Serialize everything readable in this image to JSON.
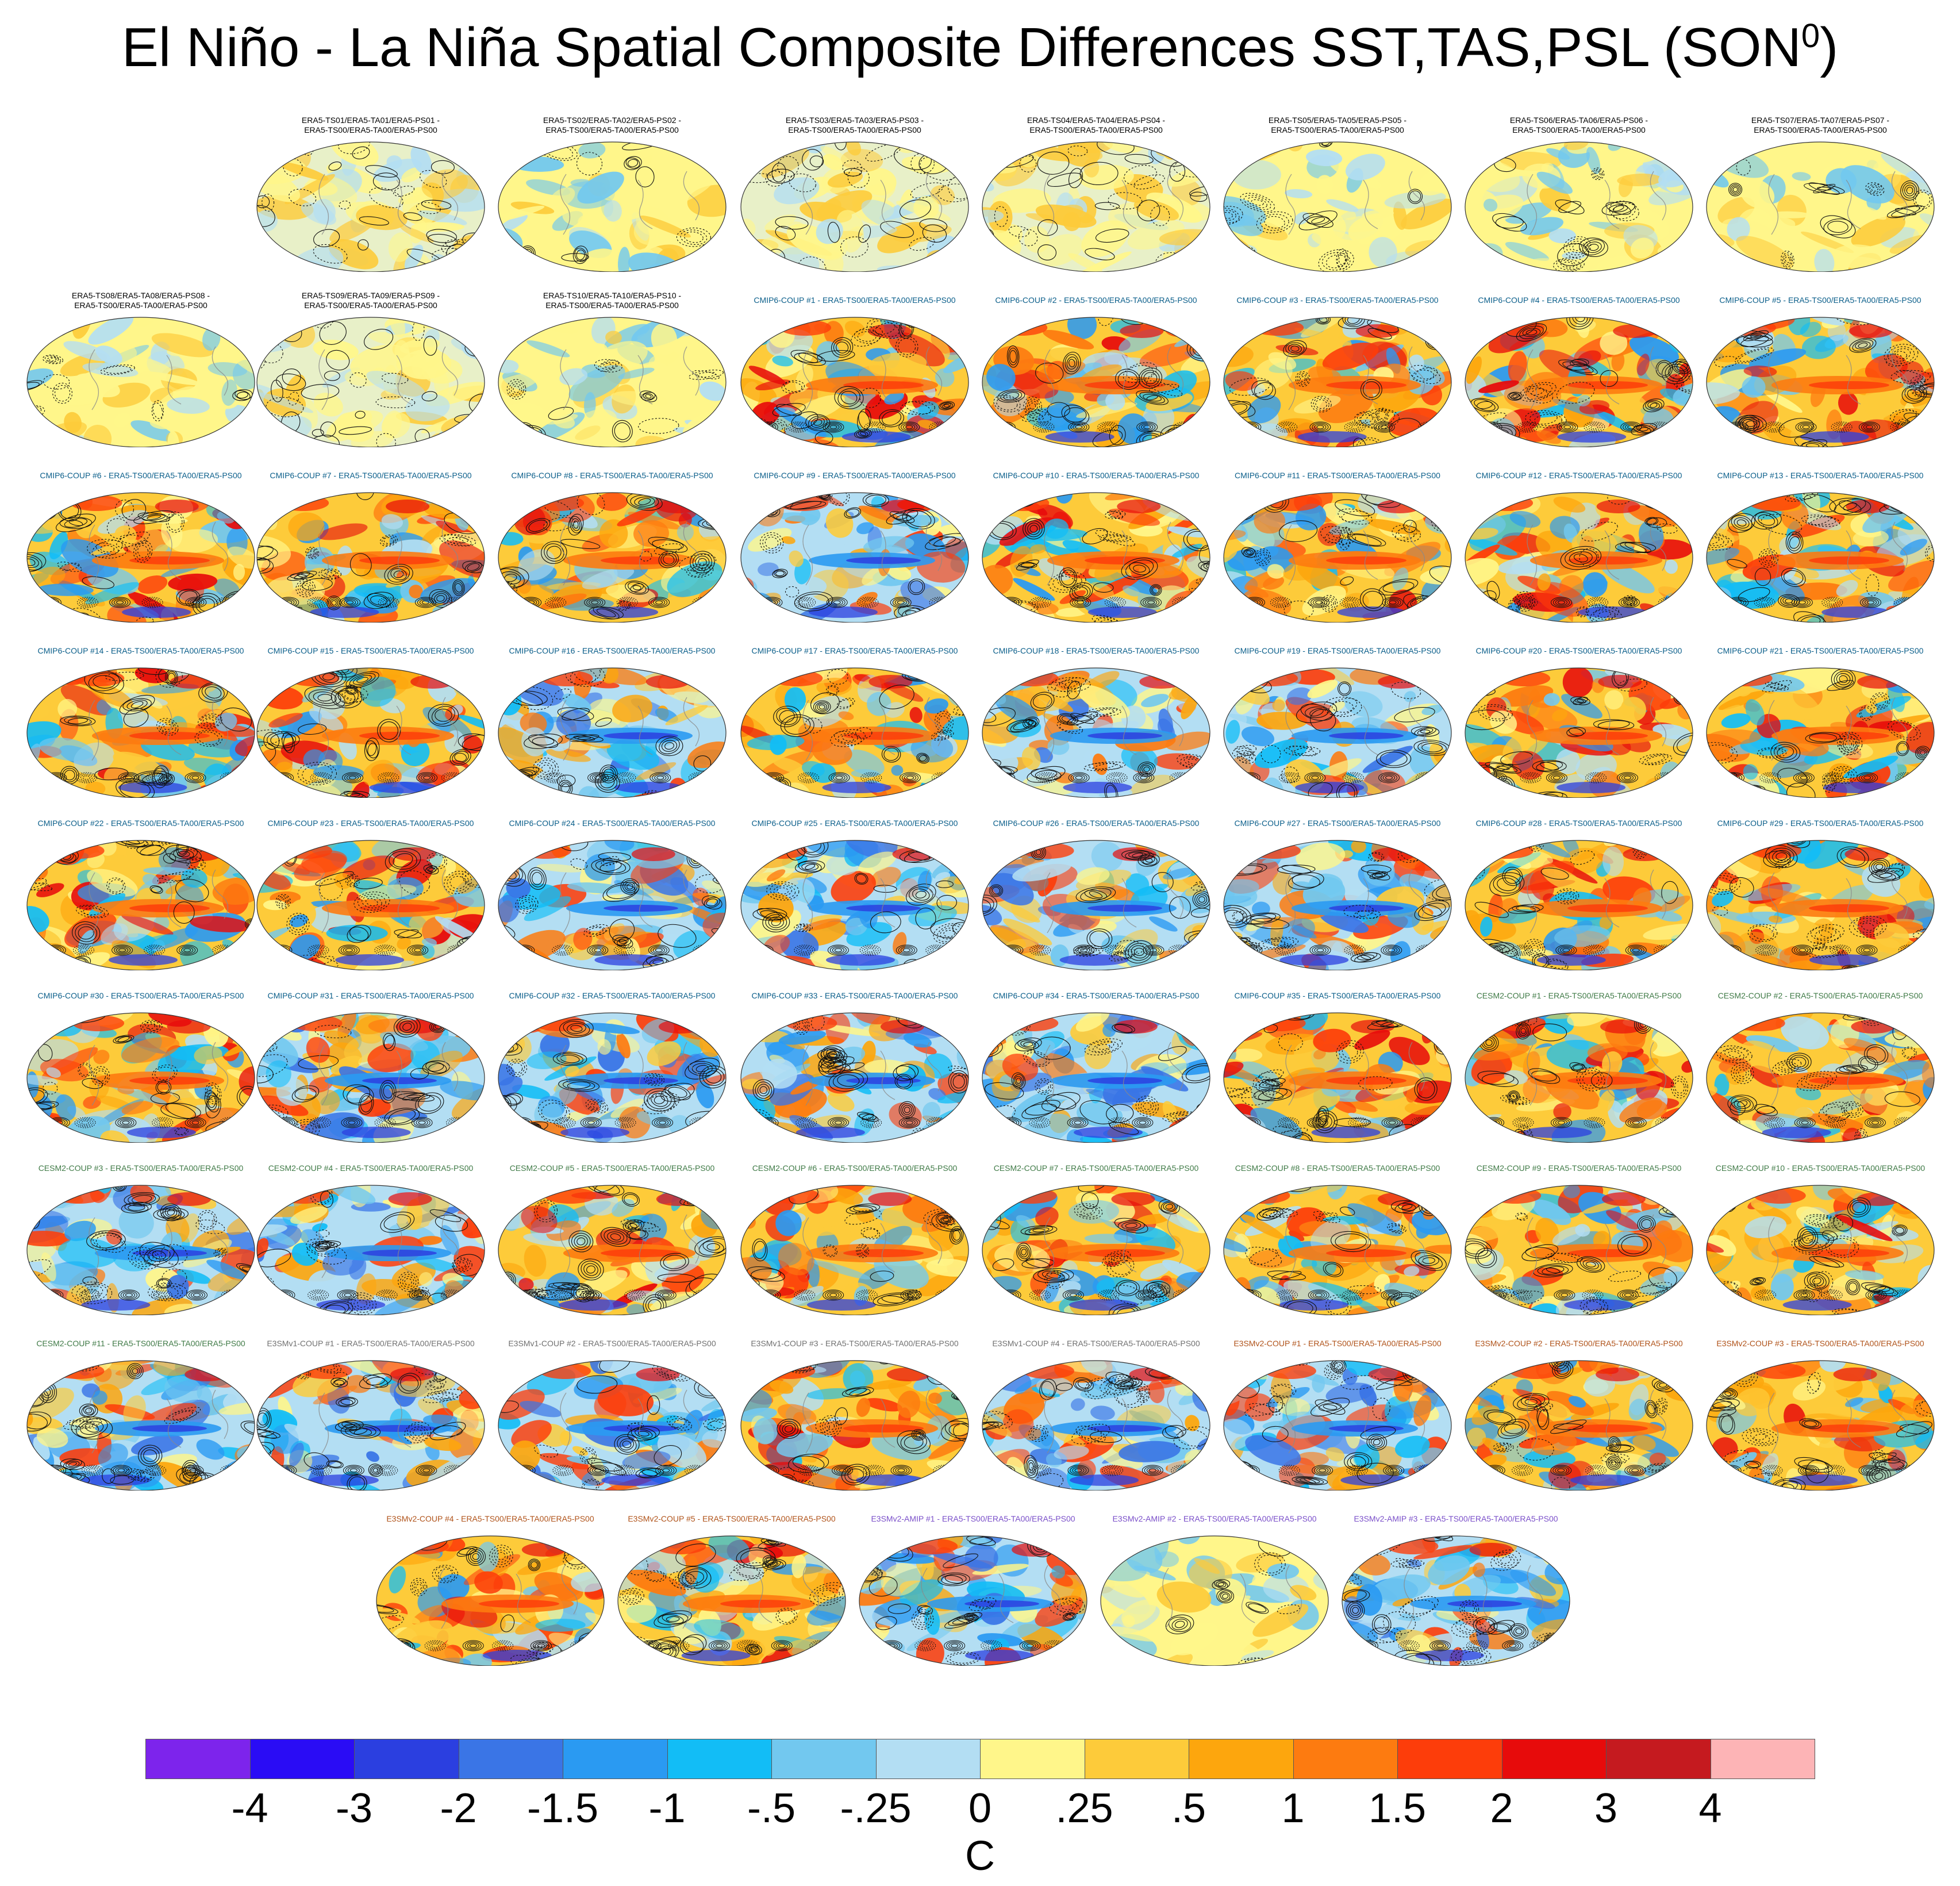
{
  "chart_data": {
    "type": "heatmap",
    "title": "El Niño - La Niña Spatial Composite Differences SST,TAS,PSL (SON",
    "title_superscript": "0",
    "title_suffix": ")",
    "projection": "Robinson (global)",
    "shading_variable": "SST/TAS composite difference",
    "contour_variable": "PSL composite difference (solid positive, dashed negative)",
    "colorbar": {
      "units": "C",
      "levels": [
        "-4",
        "-3",
        "-2",
        "-1.5",
        "-1",
        "-.5",
        "-.25",
        "0",
        ".25",
        ".5",
        "1",
        "1.5",
        "2",
        "3",
        "4"
      ],
      "colors": [
        "#7d24ec",
        "#2a0cf5",
        "#2b3fe0",
        "#3a75e6",
        "#2a9af2",
        "#12bdf6",
        "#72c8ef",
        "#b3def3",
        "#fff68a",
        "#fdcb3a",
        "#fda60d",
        "#fd7b10",
        "#fd3d0a",
        "#e70b0b",
        "#c51a1f",
        "#fdb4b6"
      ]
    },
    "panels": [
      {
        "label": "ERA5-TS01/ERA5-TA01/ERA5-PS01 - ERA5-TS00/ERA5-TA00/ERA5-PS00",
        "group": "obs",
        "pattern": "noise"
      },
      {
        "label": "ERA5-TS02/ERA5-TA02/ERA5-PS02 - ERA5-TS00/ERA5-TA00/ERA5-PS00",
        "group": "obs",
        "pattern": "weak"
      },
      {
        "label": "ERA5-TS03/ERA5-TA03/ERA5-PS03 - ERA5-TS00/ERA5-TA00/ERA5-PS00",
        "group": "obs",
        "pattern": "noise"
      },
      {
        "label": "ERA5-TS04/ERA5-TA04/ERA5-PS04 - ERA5-TS00/ERA5-TA00/ERA5-PS00",
        "group": "obs",
        "pattern": "noise"
      },
      {
        "label": "ERA5-TS05/ERA5-TA05/ERA5-PS05 - ERA5-TS00/ERA5-TA00/ERA5-PS00",
        "group": "obs",
        "pattern": "weak"
      },
      {
        "label": "ERA5-TS06/ERA5-TA06/ERA5-PS06 - ERA5-TS00/ERA5-TA00/ERA5-PS00",
        "group": "obs",
        "pattern": "weak"
      },
      {
        "label": "ERA5-TS07/ERA5-TA07/ERA5-PS07 - ERA5-TS00/ERA5-TA00/ERA5-PS00",
        "group": "obs",
        "pattern": "weak"
      },
      {
        "label": "ERA5-TS08/ERA5-TA08/ERA5-PS08 - ERA5-TS00/ERA5-TA00/ERA5-PS00",
        "group": "obs",
        "pattern": "weak"
      },
      {
        "label": "ERA5-TS09/ERA5-TA09/ERA5-PS09 - ERA5-TS00/ERA5-TA00/ERA5-PS00",
        "group": "obs",
        "pattern": "noise"
      },
      {
        "label": "ERA5-TS10/ERA5-TA10/ERA5-PS10 - ERA5-TS00/ERA5-TA00/ERA5-PS00",
        "group": "obs",
        "pattern": "weak"
      },
      {
        "label": "CMIP6-COUP  #1 - ERA5-TS00/ERA5-TA00/ERA5-PS00",
        "group": "cmip6",
        "pattern": "enso"
      },
      {
        "label": "CMIP6-COUP  #2 - ERA5-TS00/ERA5-TA00/ERA5-PS00",
        "group": "cmip6",
        "pattern": "enso"
      },
      {
        "label": "CMIP6-COUP  #3 - ERA5-TS00/ERA5-TA00/ERA5-PS00",
        "group": "cmip6",
        "pattern": "enso"
      },
      {
        "label": "CMIP6-COUP  #4 - ERA5-TS00/ERA5-TA00/ERA5-PS00",
        "group": "cmip6",
        "pattern": "enso"
      },
      {
        "label": "CMIP6-COUP  #5 - ERA5-TS00/ERA5-TA00/ERA5-PS00",
        "group": "cmip6",
        "pattern": "enso"
      },
      {
        "label": "CMIP6-COUP  #6 - ERA5-TS00/ERA5-TA00/ERA5-PS00",
        "group": "cmip6",
        "pattern": "enso"
      },
      {
        "label": "CMIP6-COUP  #7 - ERA5-TS00/ERA5-TA00/ERA5-PS00",
        "group": "cmip6",
        "pattern": "enso"
      },
      {
        "label": "CMIP6-COUP  #8 - ERA5-TS00/ERA5-TA00/ERA5-PS00",
        "group": "cmip6",
        "pattern": "enso"
      },
      {
        "label": "CMIP6-COUP  #9 - ERA5-TS00/ERA5-TA00/ERA5-PS00",
        "group": "cmip6",
        "pattern": "lanina"
      },
      {
        "label": "CMIP6-COUP  #10 - ERA5-TS00/ERA5-TA00/ERA5-PS00",
        "group": "cmip6",
        "pattern": "enso"
      },
      {
        "label": "CMIP6-COUP  #11 - ERA5-TS00/ERA5-TA00/ERA5-PS00",
        "group": "cmip6",
        "pattern": "enso"
      },
      {
        "label": "CMIP6-COUP  #12 - ERA5-TS00/ERA5-TA00/ERA5-PS00",
        "group": "cmip6",
        "pattern": "enso"
      },
      {
        "label": "CMIP6-COUP  #13 - ERA5-TS00/ERA5-TA00/ERA5-PS00",
        "group": "cmip6",
        "pattern": "enso"
      },
      {
        "label": "CMIP6-COUP  #14 - ERA5-TS00/ERA5-TA00/ERA5-PS00",
        "group": "cmip6",
        "pattern": "enso"
      },
      {
        "label": "CMIP6-COUP  #15 - ERA5-TS00/ERA5-TA00/ERA5-PS00",
        "group": "cmip6",
        "pattern": "enso"
      },
      {
        "label": "CMIP6-COUP  #16 - ERA5-TS00/ERA5-TA00/ERA5-PS00",
        "group": "cmip6",
        "pattern": "lanina"
      },
      {
        "label": "CMIP6-COUP  #17 - ERA5-TS00/ERA5-TA00/ERA5-PS00",
        "group": "cmip6",
        "pattern": "enso"
      },
      {
        "label": "CMIP6-COUP  #18 - ERA5-TS00/ERA5-TA00/ERA5-PS00",
        "group": "cmip6",
        "pattern": "lanina"
      },
      {
        "label": "CMIP6-COUP  #19 - ERA5-TS00/ERA5-TA00/ERA5-PS00",
        "group": "cmip6",
        "pattern": "lanina"
      },
      {
        "label": "CMIP6-COUP  #20 - ERA5-TS00/ERA5-TA00/ERA5-PS00",
        "group": "cmip6",
        "pattern": "enso"
      },
      {
        "label": "CMIP6-COUP  #21 - ERA5-TS00/ERA5-TA00/ERA5-PS00",
        "group": "cmip6",
        "pattern": "enso"
      },
      {
        "label": "CMIP6-COUP  #22 - ERA5-TS00/ERA5-TA00/ERA5-PS00",
        "group": "cmip6",
        "pattern": "enso"
      },
      {
        "label": "CMIP6-COUP  #23 - ERA5-TS00/ERA5-TA00/ERA5-PS00",
        "group": "cmip6",
        "pattern": "enso"
      },
      {
        "label": "CMIP6-COUP  #24 - ERA5-TS00/ERA5-TA00/ERA5-PS00",
        "group": "cmip6",
        "pattern": "lanina"
      },
      {
        "label": "CMIP6-COUP  #25 - ERA5-TS00/ERA5-TA00/ERA5-PS00",
        "group": "cmip6",
        "pattern": "lanina"
      },
      {
        "label": "CMIP6-COUP  #26 - ERA5-TS00/ERA5-TA00/ERA5-PS00",
        "group": "cmip6",
        "pattern": "lanina"
      },
      {
        "label": "CMIP6-COUP  #27 - ERA5-TS00/ERA5-TA00/ERA5-PS00",
        "group": "cmip6",
        "pattern": "lanina"
      },
      {
        "label": "CMIP6-COUP  #28 - ERA5-TS00/ERA5-TA00/ERA5-PS00",
        "group": "cmip6",
        "pattern": "enso"
      },
      {
        "label": "CMIP6-COUP  #29 - ERA5-TS00/ERA5-TA00/ERA5-PS00",
        "group": "cmip6",
        "pattern": "enso"
      },
      {
        "label": "CMIP6-COUP  #30 - ERA5-TS00/ERA5-TA00/ERA5-PS00",
        "group": "cmip6",
        "pattern": "enso"
      },
      {
        "label": "CMIP6-COUP  #31 - ERA5-TS00/ERA5-TA00/ERA5-PS00",
        "group": "cmip6",
        "pattern": "lanina"
      },
      {
        "label": "CMIP6-COUP  #32 - ERA5-TS00/ERA5-TA00/ERA5-PS00",
        "group": "cmip6",
        "pattern": "lanina"
      },
      {
        "label": "CMIP6-COUP  #33 - ERA5-TS00/ERA5-TA00/ERA5-PS00",
        "group": "cmip6",
        "pattern": "lanina"
      },
      {
        "label": "CMIP6-COUP  #34 - ERA5-TS00/ERA5-TA00/ERA5-PS00",
        "group": "cmip6",
        "pattern": "lanina"
      },
      {
        "label": "CMIP6-COUP  #35 - ERA5-TS00/ERA5-TA00/ERA5-PS00",
        "group": "cmip6",
        "pattern": "enso"
      },
      {
        "label": "CESM2-COUP  #1 - ERA5-TS00/ERA5-TA00/ERA5-PS00",
        "group": "cesm2",
        "pattern": "enso"
      },
      {
        "label": "CESM2-COUP  #2 - ERA5-TS00/ERA5-TA00/ERA5-PS00",
        "group": "cesm2",
        "pattern": "enso"
      },
      {
        "label": "CESM2-COUP  #3 - ERA5-TS00/ERA5-TA00/ERA5-PS00",
        "group": "cesm2",
        "pattern": "lanina"
      },
      {
        "label": "CESM2-COUP  #4 - ERA5-TS00/ERA5-TA00/ERA5-PS00",
        "group": "cesm2",
        "pattern": "lanina"
      },
      {
        "label": "CESM2-COUP  #5 - ERA5-TS00/ERA5-TA00/ERA5-PS00",
        "group": "cesm2",
        "pattern": "enso"
      },
      {
        "label": "CESM2-COUP  #6 - ERA5-TS00/ERA5-TA00/ERA5-PS00",
        "group": "cesm2",
        "pattern": "enso"
      },
      {
        "label": "CESM2-COUP  #7 - ERA5-TS00/ERA5-TA00/ERA5-PS00",
        "group": "cesm2",
        "pattern": "enso"
      },
      {
        "label": "CESM2-COUP  #8 - ERA5-TS00/ERA5-TA00/ERA5-PS00",
        "group": "cesm2",
        "pattern": "enso"
      },
      {
        "label": "CESM2-COUP  #9 - ERA5-TS00/ERA5-TA00/ERA5-PS00",
        "group": "cesm2",
        "pattern": "enso"
      },
      {
        "label": "CESM2-COUP  #10 - ERA5-TS00/ERA5-TA00/ERA5-PS00",
        "group": "cesm2",
        "pattern": "enso"
      },
      {
        "label": "CESM2-COUP  #11 - ERA5-TS00/ERA5-TA00/ERA5-PS00",
        "group": "cesm2",
        "pattern": "lanina"
      },
      {
        "label": "E3SMv1-COUP  #1 - ERA5-TS00/ERA5-TA00/ERA5-PS00",
        "group": "e3smv1",
        "pattern": "lanina"
      },
      {
        "label": "E3SMv1-COUP  #2 - ERA5-TS00/ERA5-TA00/ERA5-PS00",
        "group": "e3smv1",
        "pattern": "lanina"
      },
      {
        "label": "E3SMv1-COUP  #3 - ERA5-TS00/ERA5-TA00/ERA5-PS00",
        "group": "e3smv1",
        "pattern": "enso"
      },
      {
        "label": "E3SMv1-COUP  #4 - ERA5-TS00/ERA5-TA00/ERA5-PS00",
        "group": "e3smv1",
        "pattern": "lanina"
      },
      {
        "label": "E3SMv2-COUP  #1 - ERA5-TS00/ERA5-TA00/ERA5-PS00",
        "group": "e3smv2",
        "pattern": "lanina"
      },
      {
        "label": "E3SMv2-COUP  #2 - ERA5-TS00/ERA5-TA00/ERA5-PS00",
        "group": "e3smv2",
        "pattern": "enso"
      },
      {
        "label": "E3SMv2-COUP  #3 - ERA5-TS00/ERA5-TA00/ERA5-PS00",
        "group": "e3smv2",
        "pattern": "enso"
      },
      {
        "label": "E3SMv2-COUP  #4 - ERA5-TS00/ERA5-TA00/ERA5-PS00",
        "group": "e3smv2",
        "pattern": "enso"
      },
      {
        "label": "E3SMv2-COUP  #5 - ERA5-TS00/ERA5-TA00/ERA5-PS00",
        "group": "e3smv2",
        "pattern": "enso"
      },
      {
        "label": "E3SMv2-AMIP  #1 - ERA5-TS00/ERA5-TA00/ERA5-PS00",
        "group": "amip",
        "pattern": "lanina"
      },
      {
        "label": "E3SMv2-AMIP  #2 - ERA5-TS00/ERA5-TA00/ERA5-PS00",
        "group": "amip",
        "pattern": "weak"
      },
      {
        "label": "E3SMv2-AMIP  #3 - ERA5-TS00/ERA5-TA00/ERA5-PS00",
        "group": "amip",
        "pattern": "lanina"
      }
    ]
  }
}
